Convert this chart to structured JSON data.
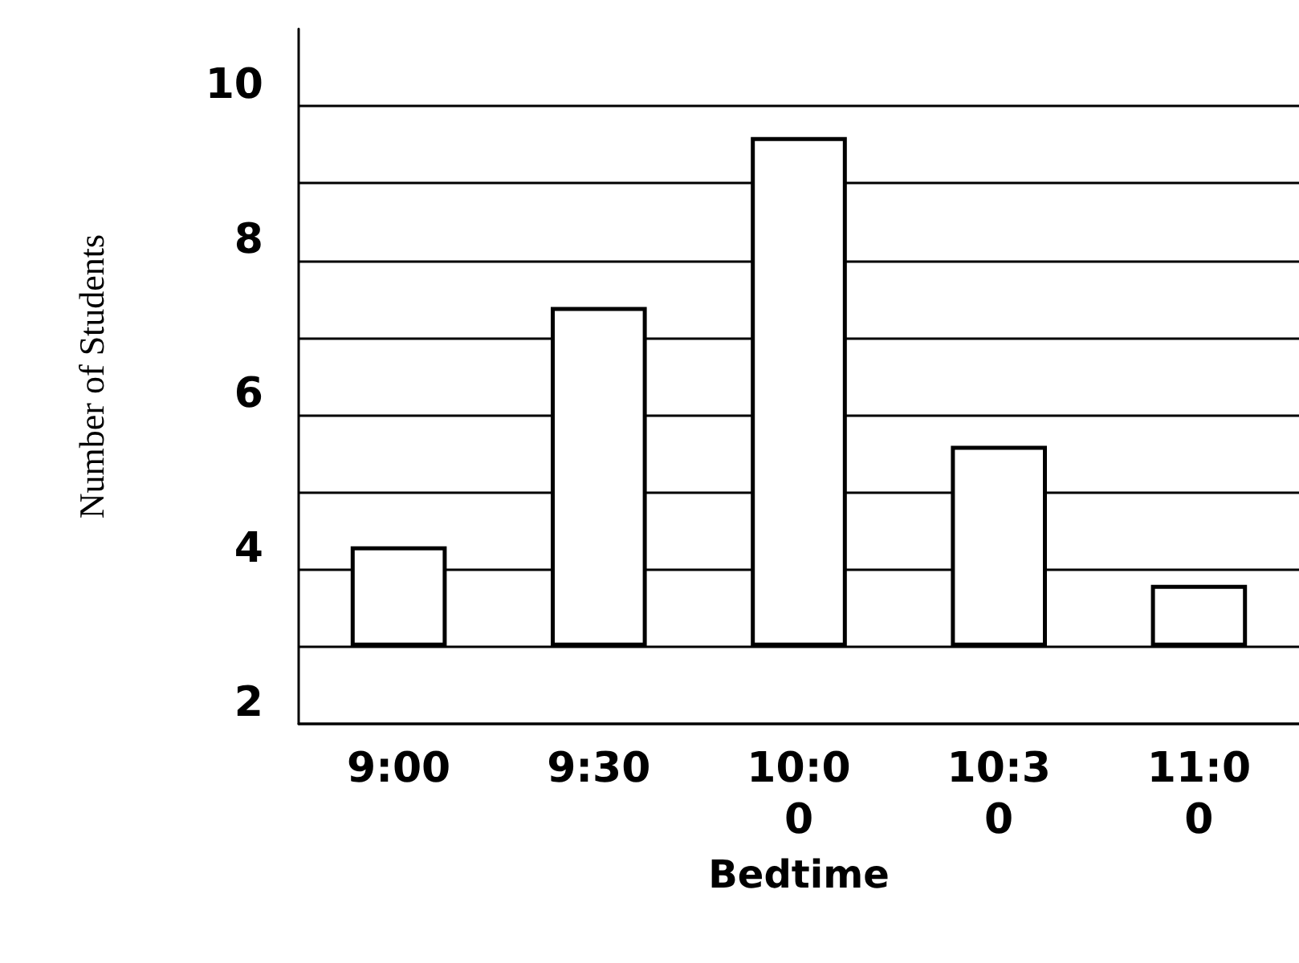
{
  "chart_data": {
    "type": "bar",
    "xlabel": "Bedtime",
    "ylabel": "Number of Students",
    "categories": [
      "9:00",
      "9:30",
      "10:00",
      "10:30",
      "11:00"
    ],
    "series": [
      {
        "color": "#ffffff",
        "values": [
          1.3,
          4.4,
          6.6,
          2.6,
          0.8
        ],
        "base": [
          3,
          3,
          3,
          3,
          3
        ]
      }
    ],
    "ylim": [
      2,
      11
    ],
    "yticks": [
      2,
      {
        "value": 3,
        "label": null
      },
      4,
      {
        "value": 5,
        "label": null
      },
      6,
      {
        "value": 7,
        "label": null
      },
      8,
      {
        "value": 9,
        "label": null
      },
      10
    ],
    "grid": "y"
  }
}
